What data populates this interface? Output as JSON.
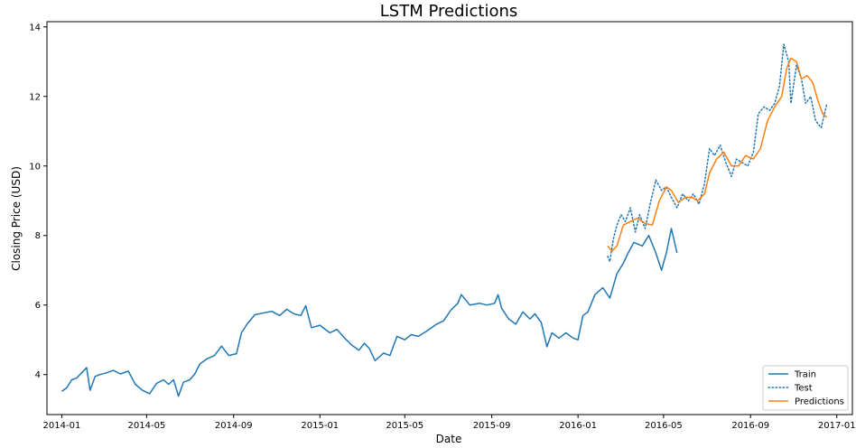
{
  "chart_data": {
    "type": "line",
    "title": "LSTM Predictions",
    "xlabel": "Date",
    "ylabel": "Closing Price (USD)",
    "x_type": "date",
    "xlim": [
      "2013-12-11",
      "2017-01-23"
    ],
    "ylim": [
      2.85,
      14.15
    ],
    "grid": false,
    "legend_position": "lower-right",
    "x_ticks": [
      {
        "date": "2014-01-01",
        "label": "2014-01"
      },
      {
        "date": "2014-05-01",
        "label": "2014-05"
      },
      {
        "date": "2014-09-01",
        "label": "2014-09"
      },
      {
        "date": "2015-01-01",
        "label": "2015-01"
      },
      {
        "date": "2015-05-01",
        "label": "2015-05"
      },
      {
        "date": "2015-09-01",
        "label": "2015-09"
      },
      {
        "date": "2016-01-01",
        "label": "2016-01"
      },
      {
        "date": "2016-05-01",
        "label": "2016-05"
      },
      {
        "date": "2016-09-01",
        "label": "2016-09"
      },
      {
        "date": "2017-01-01",
        "label": "2017-01"
      }
    ],
    "y_ticks": [
      {
        "value": 4,
        "label": "4"
      },
      {
        "value": 6,
        "label": "6"
      },
      {
        "value": 8,
        "label": "8"
      },
      {
        "value": 10,
        "label": "10"
      },
      {
        "value": 12,
        "label": "12"
      },
      {
        "value": 14,
        "label": "14"
      }
    ],
    "series": [
      {
        "name": "Train",
        "color": "#1f77b4",
        "style": "solid",
        "points": [
          [
            "2014-01-01",
            3.52
          ],
          [
            "2014-01-08",
            3.62
          ],
          [
            "2014-01-15",
            3.85
          ],
          [
            "2014-01-22",
            3.9
          ],
          [
            "2014-01-29",
            4.05
          ],
          [
            "2014-02-05",
            4.2
          ],
          [
            "2014-02-10",
            3.55
          ],
          [
            "2014-02-17",
            3.95
          ],
          [
            "2014-02-24",
            4.0
          ],
          [
            "2014-03-05",
            4.05
          ],
          [
            "2014-03-15",
            4.12
          ],
          [
            "2014-03-25",
            4.02
          ],
          [
            "2014-04-05",
            4.1
          ],
          [
            "2014-04-15",
            3.72
          ],
          [
            "2014-04-25",
            3.55
          ],
          [
            "2014-05-05",
            3.45
          ],
          [
            "2014-05-15",
            3.75
          ],
          [
            "2014-05-25",
            3.85
          ],
          [
            "2014-06-01",
            3.72
          ],
          [
            "2014-06-08",
            3.85
          ],
          [
            "2014-06-15",
            3.38
          ],
          [
            "2014-06-22",
            3.78
          ],
          [
            "2014-07-01",
            3.85
          ],
          [
            "2014-07-08",
            4.02
          ],
          [
            "2014-07-15",
            4.3
          ],
          [
            "2014-07-25",
            4.45
          ],
          [
            "2014-08-05",
            4.55
          ],
          [
            "2014-08-15",
            4.82
          ],
          [
            "2014-08-25",
            4.55
          ],
          [
            "2014-09-05",
            4.6
          ],
          [
            "2014-09-12",
            5.2
          ],
          [
            "2014-09-20",
            5.45
          ],
          [
            "2014-10-01",
            5.72
          ],
          [
            "2014-10-15",
            5.78
          ],
          [
            "2014-10-25",
            5.82
          ],
          [
            "2014-11-05",
            5.7
          ],
          [
            "2014-11-15",
            5.88
          ],
          [
            "2014-11-25",
            5.75
          ],
          [
            "2014-12-05",
            5.7
          ],
          [
            "2014-12-12",
            5.98
          ],
          [
            "2014-12-20",
            5.35
          ],
          [
            "2015-01-01",
            5.42
          ],
          [
            "2015-01-15",
            5.2
          ],
          [
            "2015-01-25",
            5.3
          ],
          [
            "2015-02-05",
            5.05
          ],
          [
            "2015-02-15",
            4.85
          ],
          [
            "2015-02-25",
            4.7
          ],
          [
            "2015-03-05",
            4.9
          ],
          [
            "2015-03-12",
            4.75
          ],
          [
            "2015-03-20",
            4.4
          ],
          [
            "2015-04-01",
            4.62
          ],
          [
            "2015-04-10",
            4.55
          ],
          [
            "2015-04-20",
            5.1
          ],
          [
            "2015-05-01",
            5.0
          ],
          [
            "2015-05-10",
            5.15
          ],
          [
            "2015-05-20",
            5.1
          ],
          [
            "2015-06-01",
            5.25
          ],
          [
            "2015-06-15",
            5.45
          ],
          [
            "2015-06-25",
            5.55
          ],
          [
            "2015-07-05",
            5.85
          ],
          [
            "2015-07-15",
            6.05
          ],
          [
            "2015-07-20",
            6.3
          ],
          [
            "2015-08-01",
            6.0
          ],
          [
            "2015-08-15",
            6.05
          ],
          [
            "2015-08-25",
            6.0
          ],
          [
            "2015-09-05",
            6.05
          ],
          [
            "2015-09-10",
            6.3
          ],
          [
            "2015-09-15",
            5.9
          ],
          [
            "2015-09-25",
            5.6
          ],
          [
            "2015-10-05",
            5.45
          ],
          [
            "2015-10-15",
            5.8
          ],
          [
            "2015-10-25",
            5.6
          ],
          [
            "2015-11-01",
            5.75
          ],
          [
            "2015-11-10",
            5.5
          ],
          [
            "2015-11-18",
            4.8
          ],
          [
            "2015-11-25",
            5.2
          ],
          [
            "2015-12-05",
            5.05
          ],
          [
            "2015-12-15",
            5.2
          ],
          [
            "2015-12-25",
            5.05
          ],
          [
            "2016-01-01",
            5.0
          ],
          [
            "2016-01-08",
            5.7
          ],
          [
            "2016-01-15",
            5.8
          ],
          [
            "2016-01-25",
            6.3
          ],
          [
            "2016-02-05",
            6.5
          ],
          [
            "2016-02-15",
            6.2
          ],
          [
            "2016-02-25",
            6.9
          ],
          [
            "2016-03-05",
            7.2
          ],
          [
            "2016-03-12",
            7.5
          ],
          [
            "2016-03-20",
            7.8
          ],
          [
            "2016-04-01",
            7.7
          ],
          [
            "2016-04-10",
            8.0
          ],
          [
            "2016-04-20",
            7.5
          ],
          [
            "2016-04-28",
            7.0
          ],
          [
            "2016-05-05",
            7.5
          ],
          [
            "2016-05-12",
            8.2
          ],
          [
            "2016-05-20",
            7.5
          ]
        ]
      },
      {
        "name": "Test",
        "color": "#1f77b4",
        "style": "dotted",
        "points": [
          [
            "2016-02-12",
            7.4
          ],
          [
            "2016-02-15",
            7.25
          ],
          [
            "2016-02-20",
            7.9
          ],
          [
            "2016-02-25",
            8.3
          ],
          [
            "2016-03-02",
            8.6
          ],
          [
            "2016-03-08",
            8.4
          ],
          [
            "2016-03-15",
            8.8
          ],
          [
            "2016-03-22",
            8.1
          ],
          [
            "2016-03-28",
            8.6
          ],
          [
            "2016-04-05",
            8.2
          ],
          [
            "2016-04-12",
            8.9
          ],
          [
            "2016-04-20",
            9.6
          ],
          [
            "2016-04-28",
            9.3
          ],
          [
            "2016-05-05",
            9.4
          ],
          [
            "2016-05-12",
            9.1
          ],
          [
            "2016-05-20",
            8.8
          ],
          [
            "2016-05-28",
            9.2
          ],
          [
            "2016-06-05",
            9.0
          ],
          [
            "2016-06-12",
            9.2
          ],
          [
            "2016-06-20",
            8.9
          ],
          [
            "2016-06-28",
            9.5
          ],
          [
            "2016-07-05",
            10.5
          ],
          [
            "2016-07-12",
            10.3
          ],
          [
            "2016-07-20",
            10.6
          ],
          [
            "2016-07-28",
            10.1
          ],
          [
            "2016-08-05",
            9.7
          ],
          [
            "2016-08-12",
            10.2
          ],
          [
            "2016-08-20",
            10.1
          ],
          [
            "2016-08-28",
            10.0
          ],
          [
            "2016-09-05",
            10.4
          ],
          [
            "2016-09-12",
            11.5
          ],
          [
            "2016-09-20",
            11.7
          ],
          [
            "2016-09-28",
            11.6
          ],
          [
            "2016-10-05",
            11.8
          ],
          [
            "2016-10-12",
            12.3
          ],
          [
            "2016-10-18",
            13.5
          ],
          [
            "2016-10-25",
            13.0
          ],
          [
            "2016-10-28",
            11.8
          ],
          [
            "2016-11-05",
            12.9
          ],
          [
            "2016-11-12",
            12.5
          ],
          [
            "2016-11-18",
            11.8
          ],
          [
            "2016-11-25",
            12.0
          ],
          [
            "2016-12-02",
            11.3
          ],
          [
            "2016-12-10",
            11.1
          ],
          [
            "2016-12-18",
            11.8
          ]
        ]
      },
      {
        "name": "Predictions",
        "color": "#ff7f0e",
        "style": "solid",
        "points": [
          [
            "2016-02-12",
            7.7
          ],
          [
            "2016-02-18",
            7.55
          ],
          [
            "2016-02-25",
            7.7
          ],
          [
            "2016-03-05",
            8.3
          ],
          [
            "2016-03-15",
            8.4
          ],
          [
            "2016-03-25",
            8.5
          ],
          [
            "2016-04-05",
            8.35
          ],
          [
            "2016-04-15",
            8.3
          ],
          [
            "2016-04-25",
            9.0
          ],
          [
            "2016-05-05",
            9.4
          ],
          [
            "2016-05-12",
            9.3
          ],
          [
            "2016-05-22",
            8.95
          ],
          [
            "2016-06-01",
            9.1
          ],
          [
            "2016-06-10",
            9.1
          ],
          [
            "2016-06-18",
            9.0
          ],
          [
            "2016-06-28",
            9.2
          ],
          [
            "2016-07-05",
            9.8
          ],
          [
            "2016-07-15",
            10.2
          ],
          [
            "2016-07-25",
            10.4
          ],
          [
            "2016-08-05",
            10.0
          ],
          [
            "2016-08-15",
            10.0
          ],
          [
            "2016-08-25",
            10.3
          ],
          [
            "2016-09-05",
            10.2
          ],
          [
            "2016-09-15",
            10.5
          ],
          [
            "2016-09-25",
            11.3
          ],
          [
            "2016-10-05",
            11.7
          ],
          [
            "2016-10-15",
            12.0
          ],
          [
            "2016-10-22",
            12.8
          ],
          [
            "2016-10-28",
            13.1
          ],
          [
            "2016-11-05",
            13.0
          ],
          [
            "2016-11-12",
            12.5
          ],
          [
            "2016-11-20",
            12.6
          ],
          [
            "2016-11-28",
            12.4
          ],
          [
            "2016-12-05",
            11.9
          ],
          [
            "2016-12-12",
            11.5
          ],
          [
            "2016-12-18",
            11.4
          ]
        ]
      }
    ]
  }
}
